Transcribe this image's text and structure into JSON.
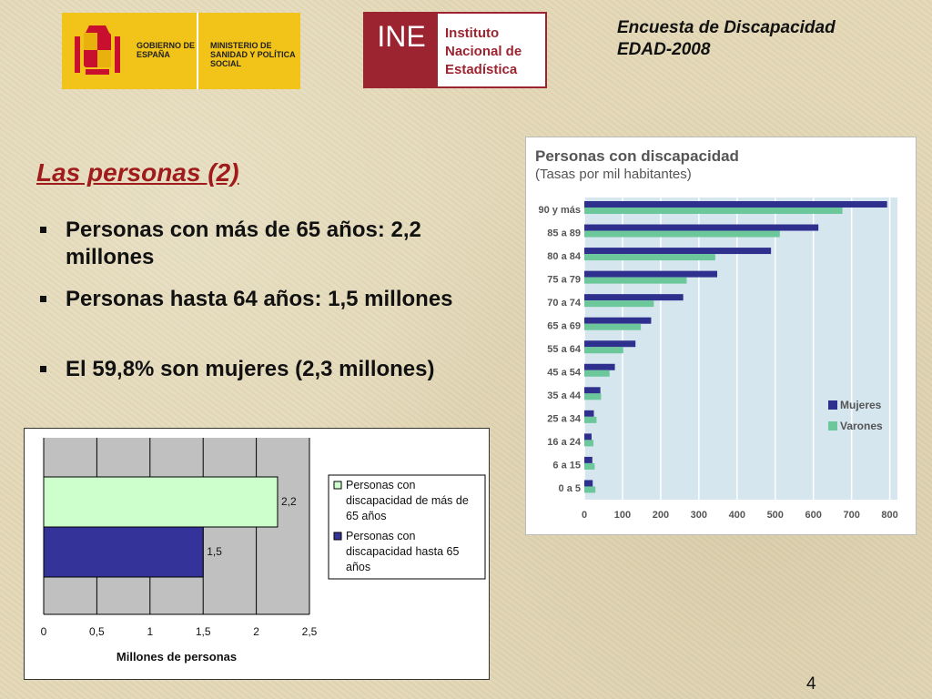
{
  "header": {
    "gov_logo": {
      "line1": "GOBIERNO DE ESPAÑA",
      "line2": "MINISTERIO DE SANIDAD Y POLÍTICA SOCIAL"
    },
    "ine_logo": {
      "mark": "INE",
      "name": "Instituto Nacional de Estadística"
    },
    "survey_line1": "Encuesta de Discapacidad",
    "survey_line2": "EDAD-2008"
  },
  "slide": {
    "title": "Las personas (2)",
    "bullets": [
      "Personas con más de 65 años: 2,2 millones",
      "Personas hasta 64 años: 1,5 millones",
      "El 59,8% son mujeres (2,3 millones)"
    ],
    "page_number": "4"
  },
  "colors": {
    "title_red": "#a01b1b",
    "ine_red": "#9c2430",
    "gov_yellow": "#f2c318",
    "women": "#2f2f8e",
    "men": "#6cc79a",
    "light_green": "#ccffcc",
    "navy": "#333399"
  },
  "chart_data": [
    {
      "type": "bar",
      "orientation": "horizontal",
      "title": "Personas con discapacidad",
      "subtitle": "(Tasas por mil habitantes)",
      "categories": [
        "90 y más",
        "85 a 89",
        "80 a 84",
        "75 a 79",
        "70 a 74",
        "65 a 69",
        "55 a 64",
        "45 a 54",
        "35 a 44",
        "25 a 34",
        "16 a 24",
        "6 a 15",
        "0 a 5"
      ],
      "series": [
        {
          "name": "Mujeres",
          "values": [
            793,
            613,
            489,
            348,
            259,
            175,
            134,
            80,
            42,
            25,
            19,
            21,
            22
          ],
          "color": "#2f2f8e"
        },
        {
          "name": "Varones",
          "values": [
            676,
            512,
            343,
            268,
            182,
            148,
            102,
            66,
            44,
            32,
            24,
            27,
            29
          ],
          "color": "#6cc79a"
        }
      ],
      "xlim": [
        0,
        820
      ],
      "xticks": [
        "0",
        "100",
        "200",
        "300",
        "400",
        "500",
        "600",
        "700",
        "800"
      ],
      "grid": true,
      "legend": "bottom-right"
    },
    {
      "type": "bar",
      "orientation": "horizontal",
      "xlabel": "Millones de personas",
      "series": [
        {
          "name": "Personas con discapacidad de más de 65 años",
          "values": [
            2.2
          ],
          "label": "2,2",
          "color": "#ccffcc"
        },
        {
          "name": "Personas con discapacidad hasta 65 años",
          "values": [
            1.5
          ],
          "label": "1,5",
          "color": "#333399"
        }
      ],
      "xlim": [
        0,
        2.5
      ],
      "xticks": [
        "0",
        "0,5",
        "1",
        "1,5",
        "2",
        "2,5"
      ],
      "grid": true,
      "legend": "right"
    }
  ]
}
